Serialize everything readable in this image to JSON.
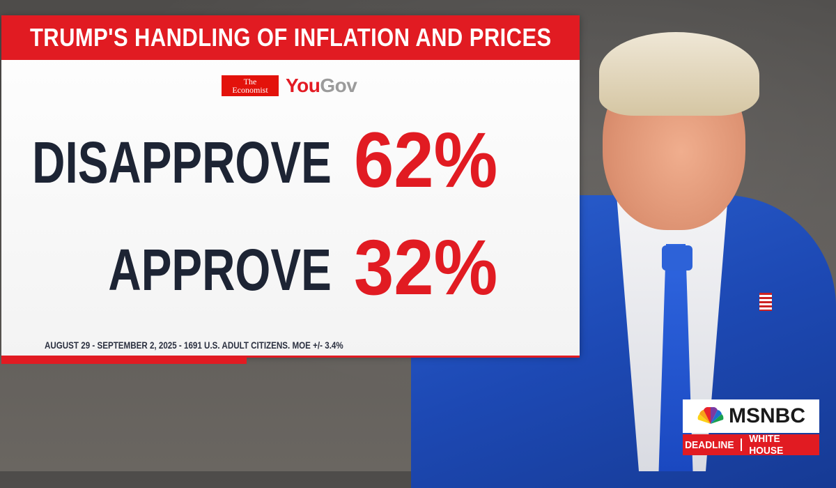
{
  "graphic": {
    "title": "TRUMP'S HANDLING OF INFLATION AND PRICES",
    "logos": {
      "economist_line1": "The",
      "economist_line2": "Economist",
      "yougov_you": "You",
      "yougov_gov": "Gov"
    },
    "results": [
      {
        "label": "DISAPPROVE",
        "value": "62%"
      },
      {
        "label": "APPROVE",
        "value": "32%"
      }
    ],
    "source_note": "AUGUST 29 - SEPTEMBER 2, 2025 - 1691 U.S. ADULT CITIZENS. MOE +/- 3.4%"
  },
  "network": {
    "name": "MSNBC",
    "show_left": "DEADLINE",
    "show_right": "WHITE HOUSE"
  },
  "colors": {
    "accent_red": "#e11b22",
    "text_dark": "#1d2434",
    "suit_blue": "#1d49b4"
  }
}
